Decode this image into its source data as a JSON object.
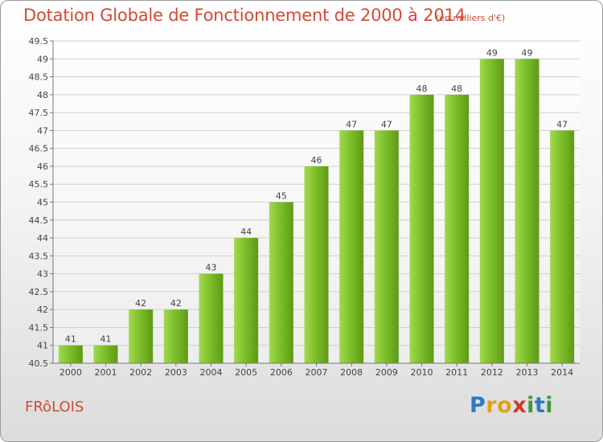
{
  "chart_data": {
    "type": "bar",
    "title": "Dotation Globale de Fonctionnement de 2000 à 2014",
    "subtitle": "(en milliers d'€)",
    "categories": [
      "2000",
      "2001",
      "2002",
      "2003",
      "2004",
      "2005",
      "2006",
      "2007",
      "2008",
      "2009",
      "2010",
      "2011",
      "2012",
      "2013",
      "2014"
    ],
    "values": [
      41,
      41,
      42,
      42,
      43,
      44,
      45,
      46,
      47,
      47,
      48,
      48,
      49,
      49,
      47
    ],
    "value_labels": [
      "41",
      "41",
      "42",
      "42",
      "43",
      "44",
      "45",
      "46",
      "47",
      "47",
      "48",
      "48",
      "49",
      "49",
      "47"
    ],
    "ylim": [
      40.5,
      49.5
    ],
    "yticks": [
      40.5,
      41,
      41.5,
      42,
      42.5,
      43,
      43.5,
      44,
      44.5,
      45,
      45.5,
      46,
      46.5,
      47,
      47.5,
      48,
      48.5,
      49,
      49.5
    ],
    "ytick_labels": [
      "40.5",
      "41",
      "41.5",
      "42",
      "42.5",
      "43",
      "43.5",
      "44",
      "44.5",
      "45",
      "45.5",
      "46",
      "46.5",
      "47",
      "47.5",
      "48",
      "48.5",
      "49",
      "49.5"
    ],
    "grid": true,
    "xlabel": "",
    "ylabel": "",
    "bar_color": "#7cbf2a"
  },
  "footer": {
    "commune": "FRôLOIS",
    "logo_letters": [
      "P",
      "r",
      "o",
      "x",
      "i",
      "t",
      "i"
    ],
    "logo_colors": [
      "#2e7bc4",
      "#e0a21c",
      "#e0a21c",
      "#d0392b",
      "#3a9a3a",
      "#2e7bc4",
      "#3a9a3a"
    ]
  },
  "colors": {
    "title": "#d24a36",
    "axis": "#777777",
    "grid": "#d0d0d0"
  }
}
